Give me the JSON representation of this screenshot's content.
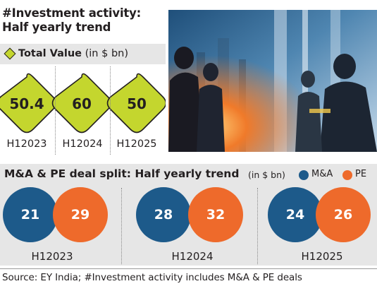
{
  "title_line1": "#Investment activity:",
  "title_line2": "Half yearly trend",
  "colors": {
    "diamond": "#c4d62e",
    "ma": "#1d5a8a",
    "pe": "#ee6a2b",
    "panel": "#e6e6e6"
  },
  "chart_data": [
    {
      "type": "bar",
      "title": "Total Value",
      "unit": "(in $ bn)",
      "categories": [
        "H12023",
        "H12024",
        "H12025"
      ],
      "values": [
        50.4,
        60,
        50
      ]
    },
    {
      "type": "bar",
      "title": "M&A & PE deal split: Half yearly trend",
      "unit": "(in $ bn)",
      "categories": [
        "H12023",
        "H12024",
        "H12025"
      ],
      "series": [
        {
          "name": "M&A",
          "values": [
            21,
            28,
            24
          ]
        },
        {
          "name": "PE",
          "values": [
            29,
            32,
            26
          ]
        }
      ]
    }
  ],
  "source": "Source: EY India; #Investment activity includes M&A & PE deals"
}
